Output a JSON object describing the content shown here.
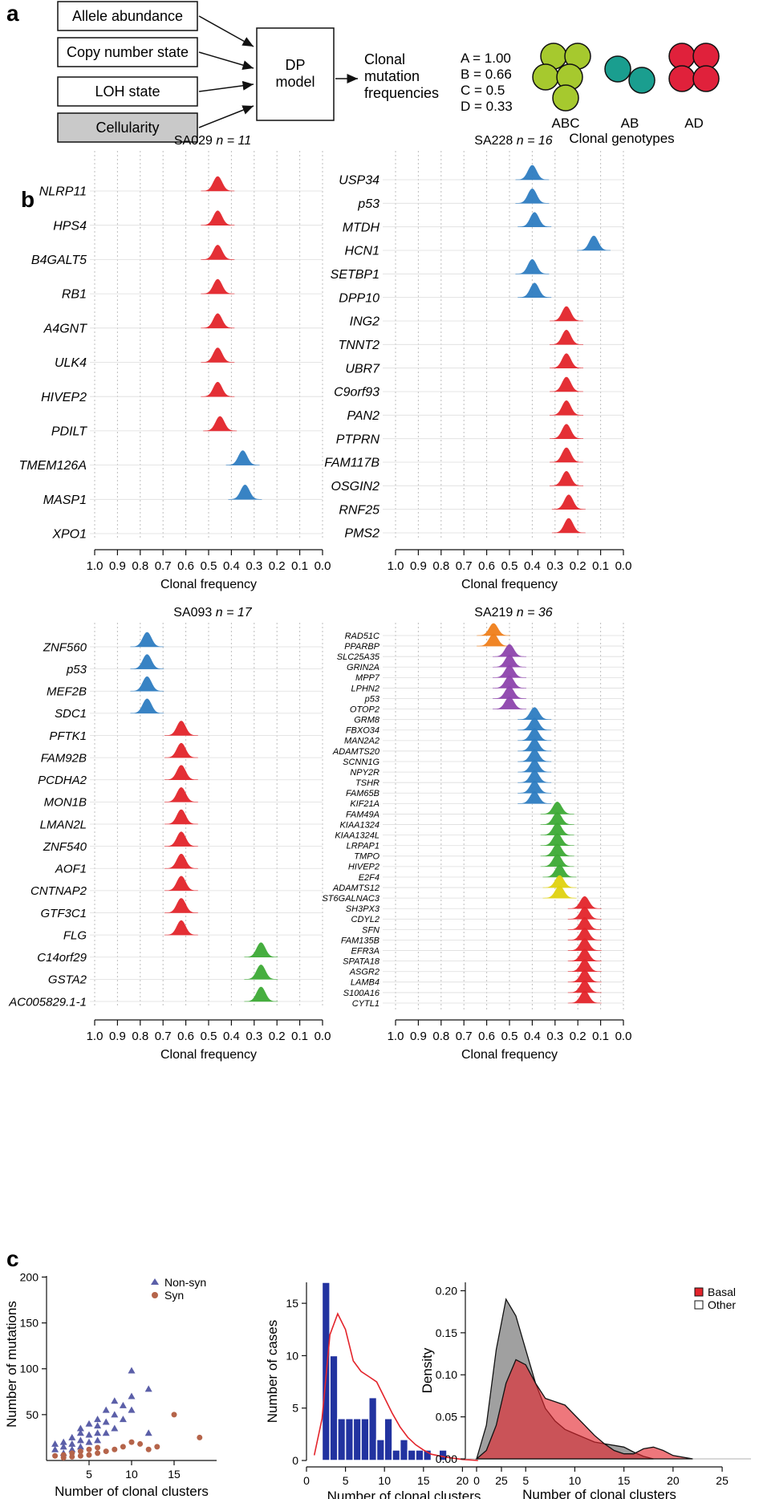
{
  "panel_labels": {
    "a": "a",
    "b": "b",
    "c": "c"
  },
  "panel_a": {
    "inputs": [
      "Allele abundance",
      "Copy number state",
      "LOH state",
      "Cellularity"
    ],
    "model_line1": "DP",
    "model_line2": "model",
    "output": [
      "Clonal",
      "mutation",
      "frequencies"
    ],
    "legend_values": [
      "A = 1.00",
      "B = 0.66",
      "C = 0.5",
      "D = 0.33"
    ],
    "genotypes": [
      {
        "label": "ABC",
        "color": "#a6c92e"
      },
      {
        "label": "AB",
        "color": "#1a9e8f"
      },
      {
        "label": "AD",
        "color": "#e0213b"
      }
    ],
    "genotype_title": "Clonal genotypes"
  },
  "colors": {
    "red": "#e3242b",
    "blue": "#2e7dc1",
    "green": "#3daa35",
    "orange": "#f07f1b",
    "purple": "#8e44ad",
    "yellow": "#e0d20f",
    "grid": "#bdbdbd"
  },
  "chart_data": [
    {
      "type": "ridgeline",
      "sample": "SA029",
      "n_label": "n = 11",
      "xlabel": "Clonal frequency",
      "xlim": [
        1.0,
        0.0
      ],
      "ticks": [
        "1.0",
        "0.9",
        "0.8",
        "0.7",
        "0.6",
        "0.5",
        "0.4",
        "0.3",
        "0.2",
        "0.1",
        "0.0"
      ],
      "genes": [
        {
          "name": "NLRP11",
          "peak": 0.46,
          "color": "red"
        },
        {
          "name": "HPS4",
          "peak": 0.46,
          "color": "red"
        },
        {
          "name": "B4GALT5",
          "peak": 0.46,
          "color": "red"
        },
        {
          "name": "RB1",
          "peak": 0.46,
          "color": "red"
        },
        {
          "name": "A4GNT",
          "peak": 0.46,
          "color": "red"
        },
        {
          "name": "ULK4",
          "peak": 0.46,
          "color": "red"
        },
        {
          "name": "HIVEP2",
          "peak": 0.46,
          "color": "red"
        },
        {
          "name": "PDILT",
          "peak": 0.45,
          "color": "red"
        },
        {
          "name": "TMEM126A",
          "peak": 0.35,
          "color": "blue"
        },
        {
          "name": "MASP1",
          "peak": 0.34,
          "color": "blue"
        },
        {
          "name": "XPO1",
          "peak": null,
          "color": "blue"
        }
      ]
    },
    {
      "type": "ridgeline",
      "sample": "SA228",
      "n_label": "n = 16",
      "xlabel": "Clonal frequency",
      "xlim": [
        1.0,
        0.0
      ],
      "ticks": [
        "1.0",
        "0.9",
        "0.8",
        "0.7",
        "0.6",
        "0.5",
        "0.4",
        "0.3",
        "0.2",
        "0.1",
        "0.0"
      ],
      "genes": [
        {
          "name": "USP34",
          "peak": 0.4,
          "color": "blue"
        },
        {
          "name": "p53",
          "peak": 0.4,
          "color": "blue"
        },
        {
          "name": "MTDH",
          "peak": 0.39,
          "color": "blue"
        },
        {
          "name": "HCN1",
          "peak": 0.13,
          "color": "blue"
        },
        {
          "name": "SETBP1",
          "peak": 0.4,
          "color": "blue"
        },
        {
          "name": "DPP10",
          "peak": 0.39,
          "color": "blue"
        },
        {
          "name": "ING2",
          "peak": 0.25,
          "color": "red"
        },
        {
          "name": "TNNT2",
          "peak": 0.25,
          "color": "red"
        },
        {
          "name": "UBR7",
          "peak": 0.25,
          "color": "red"
        },
        {
          "name": "C9orf93",
          "peak": 0.25,
          "color": "red"
        },
        {
          "name": "PAN2",
          "peak": 0.25,
          "color": "red"
        },
        {
          "name": "PTPRN",
          "peak": 0.25,
          "color": "red"
        },
        {
          "name": "FAM117B",
          "peak": 0.25,
          "color": "red"
        },
        {
          "name": "OSGIN2",
          "peak": 0.25,
          "color": "red"
        },
        {
          "name": "RNF25",
          "peak": 0.24,
          "color": "red"
        },
        {
          "name": "PMS2",
          "peak": 0.24,
          "color": "red"
        }
      ]
    },
    {
      "type": "ridgeline",
      "sample": "SA093",
      "n_label": "n = 17",
      "xlabel": "Clonal frequency",
      "xlim": [
        1.0,
        0.0
      ],
      "ticks": [
        "1.0",
        "0.9",
        "0.8",
        "0.7",
        "0.6",
        "0.5",
        "0.4",
        "0.3",
        "0.2",
        "0.1",
        "0.0"
      ],
      "genes": [
        {
          "name": "ZNF560",
          "peak": 0.77,
          "color": "blue"
        },
        {
          "name": "p53",
          "peak": 0.77,
          "color": "blue"
        },
        {
          "name": "MEF2B",
          "peak": 0.77,
          "color": "blue"
        },
        {
          "name": "SDC1",
          "peak": 0.77,
          "color": "blue"
        },
        {
          "name": "PFTK1",
          "peak": 0.62,
          "color": "red"
        },
        {
          "name": "FAM92B",
          "peak": 0.62,
          "color": "red"
        },
        {
          "name": "PCDHA2",
          "peak": 0.62,
          "color": "red"
        },
        {
          "name": "MON1B",
          "peak": 0.62,
          "color": "red"
        },
        {
          "name": "LMAN2L",
          "peak": 0.62,
          "color": "red"
        },
        {
          "name": "ZNF540",
          "peak": 0.62,
          "color": "red"
        },
        {
          "name": "AOF1",
          "peak": 0.62,
          "color": "red"
        },
        {
          "name": "CNTNAP2",
          "peak": 0.62,
          "color": "red"
        },
        {
          "name": "GTF3C1",
          "peak": 0.62,
          "color": "red"
        },
        {
          "name": "FLG",
          "peak": 0.62,
          "color": "red"
        },
        {
          "name": "C14orf29",
          "peak": 0.27,
          "color": "green"
        },
        {
          "name": "GSTA2",
          "peak": 0.27,
          "color": "green"
        },
        {
          "name": "AC005829.1-1",
          "peak": 0.27,
          "color": "green"
        }
      ]
    },
    {
      "type": "ridgeline",
      "sample": "SA219",
      "n_label": "n = 36",
      "xlabel": "Clonal frequency",
      "xlim": [
        1.0,
        0.0
      ],
      "ticks": [
        "1.0",
        "0.9",
        "0.8",
        "0.7",
        "0.6",
        "0.5",
        "0.4",
        "0.3",
        "0.2",
        "0.1",
        "0.0"
      ],
      "genes": [
        {
          "name": "RAD51C",
          "peak": 0.57,
          "color": "orange"
        },
        {
          "name": "PPARBP",
          "peak": 0.57,
          "color": "orange"
        },
        {
          "name": "SLC25A35",
          "peak": 0.5,
          "color": "purple"
        },
        {
          "name": "GRIN2A",
          "peak": 0.5,
          "color": "purple"
        },
        {
          "name": "MPP7",
          "peak": 0.5,
          "color": "purple"
        },
        {
          "name": "LPHN2",
          "peak": 0.5,
          "color": "purple"
        },
        {
          "name": "p53",
          "peak": 0.5,
          "color": "purple"
        },
        {
          "name": "OTOP2",
          "peak": 0.5,
          "color": "purple"
        },
        {
          "name": "GRM8",
          "peak": 0.39,
          "color": "blue"
        },
        {
          "name": "FBXO34",
          "peak": 0.39,
          "color": "blue"
        },
        {
          "name": "MAN2A2",
          "peak": 0.39,
          "color": "blue"
        },
        {
          "name": "ADAMTS20",
          "peak": 0.39,
          "color": "blue"
        },
        {
          "name": "SCNN1G",
          "peak": 0.39,
          "color": "blue"
        },
        {
          "name": "NPY2R",
          "peak": 0.39,
          "color": "blue"
        },
        {
          "name": "TSHR",
          "peak": 0.39,
          "color": "blue"
        },
        {
          "name": "FAM65B",
          "peak": 0.39,
          "color": "blue"
        },
        {
          "name": "KIF21A",
          "peak": 0.39,
          "color": "blue"
        },
        {
          "name": "FAM49A",
          "peak": 0.29,
          "color": "green"
        },
        {
          "name": "KIAA1324",
          "peak": 0.29,
          "color": "green"
        },
        {
          "name": "KIAA1324L",
          "peak": 0.29,
          "color": "green"
        },
        {
          "name": "LRPAP1",
          "peak": 0.29,
          "color": "green"
        },
        {
          "name": "TMPO",
          "peak": 0.29,
          "color": "green"
        },
        {
          "name": "HIVEP2",
          "peak": 0.29,
          "color": "green"
        },
        {
          "name": "E2F4",
          "peak": 0.28,
          "color": "green"
        },
        {
          "name": "ADAMTS12",
          "peak": 0.28,
          "color": "yellow"
        },
        {
          "name": "ST6GALNAC3",
          "peak": 0.28,
          "color": "yellow"
        },
        {
          "name": "SH3PX3",
          "peak": 0.17,
          "color": "red"
        },
        {
          "name": "CDYL2",
          "peak": 0.17,
          "color": "red"
        },
        {
          "name": "SFN",
          "peak": 0.17,
          "color": "red"
        },
        {
          "name": "FAM135B",
          "peak": 0.17,
          "color": "red"
        },
        {
          "name": "EFR3A",
          "peak": 0.17,
          "color": "red"
        },
        {
          "name": "SPATA18",
          "peak": 0.17,
          "color": "red"
        },
        {
          "name": "ASGR2",
          "peak": 0.17,
          "color": "red"
        },
        {
          "name": "LAMB4",
          "peak": 0.17,
          "color": "red"
        },
        {
          "name": "S100A16",
          "peak": 0.17,
          "color": "red"
        },
        {
          "name": "CYTL1",
          "peak": 0.17,
          "color": "red"
        }
      ]
    },
    {
      "type": "scatter",
      "xlabel": "Number of clonal clusters",
      "ylabel": "Number of mutations",
      "xlim": [
        0,
        20
      ],
      "ylim": [
        0,
        210
      ],
      "xticks": [
        "5",
        "10",
        "15"
      ],
      "yticks": [
        "50",
        "100",
        "150",
        "200"
      ],
      "series": [
        {
          "name": "Non-syn",
          "marker": "triangle",
          "color": "#5b5fa8",
          "points": [
            [
              1,
              18
            ],
            [
              1,
              12
            ],
            [
              2,
              20
            ],
            [
              2,
              15
            ],
            [
              2,
              8
            ],
            [
              3,
              25
            ],
            [
              3,
              18
            ],
            [
              3,
              12
            ],
            [
              4,
              35
            ],
            [
              4,
              30
            ],
            [
              4,
              22
            ],
            [
              4,
              15
            ],
            [
              5,
              40
            ],
            [
              5,
              28
            ],
            [
              5,
              20
            ],
            [
              6,
              45
            ],
            [
              6,
              38
            ],
            [
              6,
              30
            ],
            [
              6,
              22
            ],
            [
              7,
              55
            ],
            [
              7,
              42
            ],
            [
              7,
              30
            ],
            [
              8,
              65
            ],
            [
              8,
              50
            ],
            [
              8,
              35
            ],
            [
              9,
              60
            ],
            [
              9,
              45
            ],
            [
              10,
              98
            ],
            [
              10,
              70
            ],
            [
              10,
              55
            ],
            [
              12,
              78
            ],
            [
              12,
              30
            ]
          ]
        },
        {
          "name": "Syn",
          "marker": "circle",
          "color": "#b5644a",
          "points": [
            [
              1,
              5
            ],
            [
              2,
              3
            ],
            [
              2,
              6
            ],
            [
              3,
              4
            ],
            [
              3,
              8
            ],
            [
              4,
              5
            ],
            [
              4,
              10
            ],
            [
              5,
              6
            ],
            [
              5,
              12
            ],
            [
              6,
              8
            ],
            [
              6,
              14
            ],
            [
              7,
              10
            ],
            [
              8,
              12
            ],
            [
              9,
              15
            ],
            [
              10,
              20
            ],
            [
              11,
              18
            ],
            [
              12,
              12
            ],
            [
              13,
              15
            ],
            [
              15,
              50
            ],
            [
              18,
              25
            ]
          ]
        }
      ]
    },
    {
      "type": "bar",
      "xlabel": "Number of clonal clusters",
      "ylabel": "Number of cases",
      "xlim": [
        0,
        25
      ],
      "ylim": [
        0,
        17
      ],
      "xticks": [
        "0",
        "5",
        "10",
        "15",
        "20",
        "25"
      ],
      "yticks": [
        "0",
        "5",
        "10",
        "15"
      ],
      "bins": [
        2,
        3,
        4,
        5,
        6,
        7,
        8,
        9,
        10,
        11,
        12,
        13,
        14,
        15,
        16,
        17
      ],
      "values": [
        17,
        10,
        4,
        4,
        4,
        4,
        6,
        2,
        4,
        1,
        2,
        1,
        1,
        1,
        0,
        1
      ],
      "bar_color": "#2233a0",
      "density_color": "#e3242b",
      "density": [
        [
          1,
          0.5
        ],
        [
          2,
          4
        ],
        [
          3,
          12
        ],
        [
          4,
          14
        ],
        [
          5,
          12.5
        ],
        [
          6,
          9.5
        ],
        [
          7,
          8.5
        ],
        [
          8,
          8
        ],
        [
          9,
          7.5
        ],
        [
          10,
          6
        ],
        [
          11,
          4.5
        ],
        [
          12,
          3.2
        ],
        [
          13,
          2.2
        ],
        [
          14,
          1.5
        ],
        [
          15,
          1.0
        ],
        [
          16,
          0.6
        ],
        [
          18,
          0.3
        ],
        [
          20,
          0.1
        ],
        [
          22,
          0
        ]
      ]
    },
    {
      "type": "area",
      "xlabel": "Number of clonal clusters",
      "ylabel": "Density",
      "xlim": [
        0,
        25
      ],
      "ylim": [
        0,
        0.21
      ],
      "xticks": [
        "0",
        "5",
        "10",
        "15",
        "20",
        "25"
      ],
      "yticks": [
        "0.00",
        "0.05",
        "0.10",
        "0.15",
        "0.20"
      ],
      "series": [
        {
          "name": "Basal",
          "color": "#e3242b",
          "points": [
            [
              0,
              0
            ],
            [
              1,
              0.01
            ],
            [
              2,
              0.04
            ],
            [
              3,
              0.09
            ],
            [
              4,
              0.118
            ],
            [
              5,
              0.112
            ],
            [
              6,
              0.09
            ],
            [
              7,
              0.072
            ],
            [
              8,
              0.068
            ],
            [
              9,
              0.064
            ],
            [
              10,
              0.052
            ],
            [
              11,
              0.04
            ],
            [
              12,
              0.028
            ],
            [
              13,
              0.018
            ],
            [
              14,
              0.01
            ],
            [
              15,
              0.006
            ],
            [
              16,
              0.006
            ],
            [
              17,
              0.012
            ],
            [
              18,
              0.014
            ],
            [
              19,
              0.01
            ],
            [
              20,
              0.004
            ],
            [
              22,
              0
            ]
          ]
        },
        {
          "name": "Other",
          "color": "#8f8f8f",
          "points": [
            [
              0,
              0
            ],
            [
              1,
              0.04
            ],
            [
              2,
              0.13
            ],
            [
              3,
              0.19
            ],
            [
              4,
              0.17
            ],
            [
              5,
              0.13
            ],
            [
              6,
              0.09
            ],
            [
              7,
              0.06
            ],
            [
              8,
              0.045
            ],
            [
              9,
              0.035
            ],
            [
              10,
              0.03
            ],
            [
              11,
              0.025
            ],
            [
              12,
              0.02
            ],
            [
              13,
              0.018
            ],
            [
              14,
              0.016
            ],
            [
              15,
              0.014
            ],
            [
              16,
              0.008
            ],
            [
              17,
              0.003
            ],
            [
              18,
              0
            ]
          ]
        }
      ]
    }
  ]
}
